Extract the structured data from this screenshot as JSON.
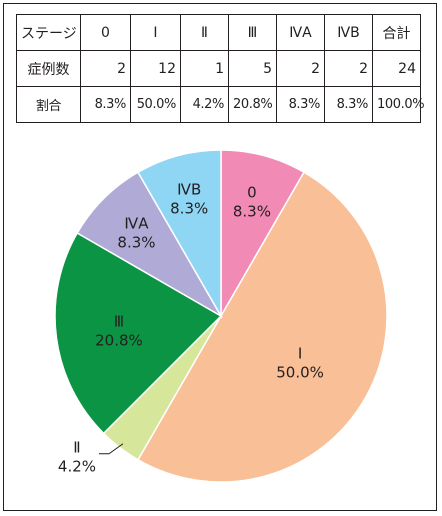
{
  "table": {
    "headers": [
      "ステージ",
      "0",
      "I",
      "Ⅱ",
      "Ⅲ",
      "ⅣA",
      "ⅣB",
      "合計"
    ],
    "rows": [
      [
        "症例数",
        "2",
        "12",
        "1",
        "5",
        "2",
        "2",
        "24"
      ],
      [
        "割合",
        "8.3%",
        "50.0%",
        "4.2%",
        "20.8%",
        "8.3%",
        "8.3%",
        "100.0%"
      ]
    ]
  },
  "chart_data": {
    "type": "pie",
    "title": "",
    "start_angle_deg": 0,
    "direction": "clockwise",
    "slices": [
      {
        "name": "0",
        "value": 2,
        "label": "8.3%",
        "color": "#f18ab5"
      },
      {
        "name": "I",
        "value": 12,
        "label": "50.0%",
        "color": "#f9bf97"
      },
      {
        "name": "Ⅱ",
        "value": 1,
        "label": "4.2%",
        "color": "#d6e69a"
      },
      {
        "name": "Ⅲ",
        "value": 5,
        "label": "20.8%",
        "color": "#0b9444"
      },
      {
        "name": "ⅣA",
        "value": 2,
        "label": "8.3%",
        "color": "#b0aad6"
      },
      {
        "name": "ⅣB",
        "value": 2,
        "label": "8.3%",
        "color": "#8fd6f5"
      }
    ],
    "legend": "none"
  }
}
